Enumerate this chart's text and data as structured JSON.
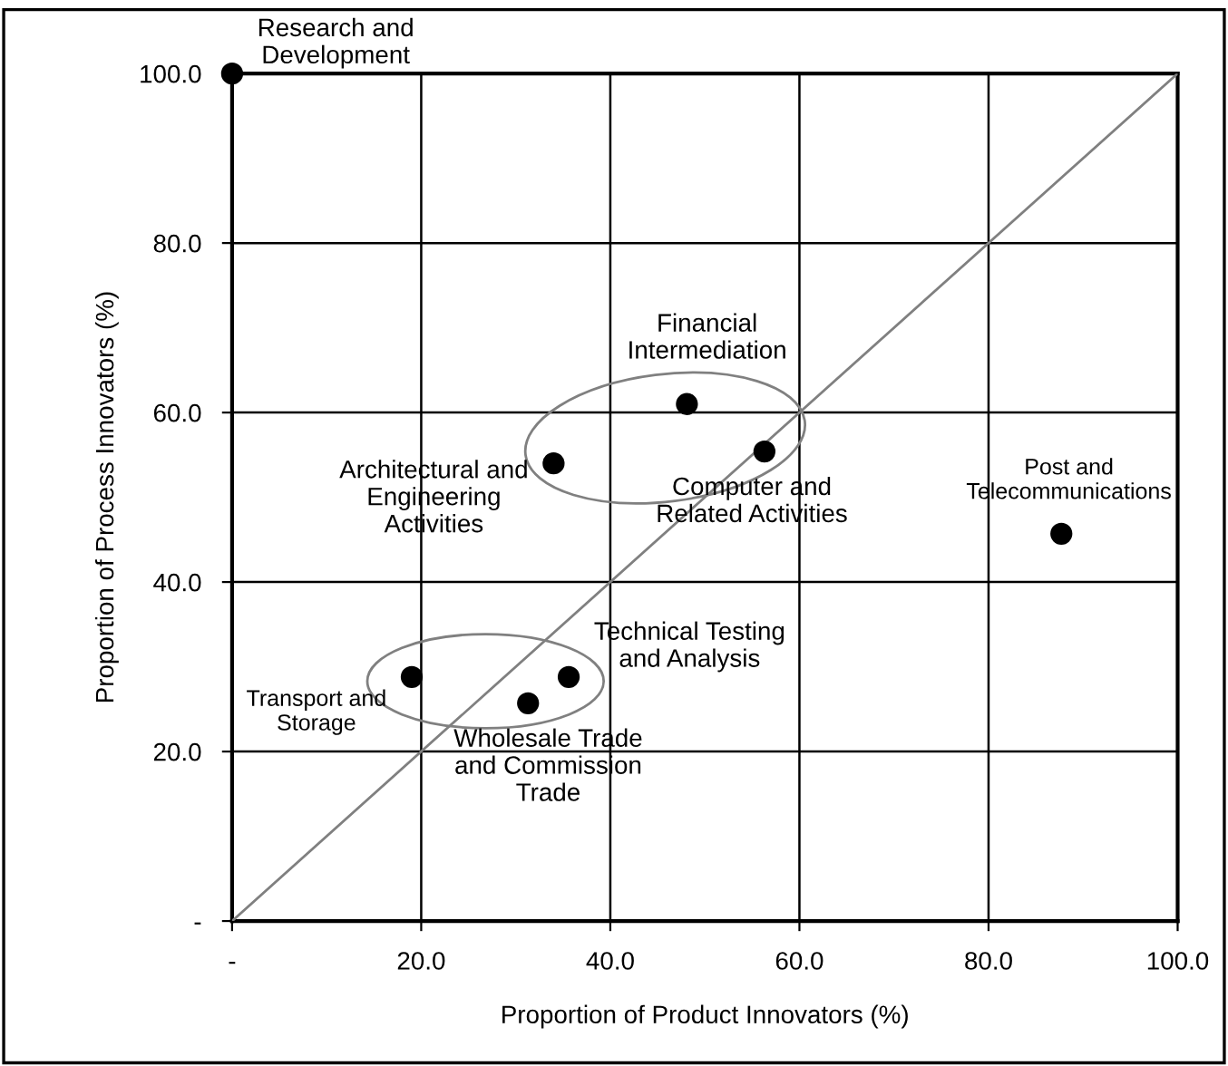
{
  "chart_data": {
    "type": "scatter",
    "xlabel": "Proportion of Product Innovators (%)",
    "ylabel": "Proportion of Process Innovators (%)",
    "xlim": [
      0,
      100
    ],
    "ylim": [
      0,
      100
    ],
    "xticks": [
      {
        "value": 0,
        "label": "-"
      },
      {
        "value": 20,
        "label": "20.0"
      },
      {
        "value": 40,
        "label": "40.0"
      },
      {
        "value": 60,
        "label": "60.0"
      },
      {
        "value": 80,
        "label": "80.0"
      },
      {
        "value": 100,
        "label": "100.0"
      }
    ],
    "yticks": [
      {
        "value": 0,
        "label": "-"
      },
      {
        "value": 20,
        "label": "20.0"
      },
      {
        "value": 40,
        "label": "40.0"
      },
      {
        "value": 60,
        "label": "60.0"
      },
      {
        "value": 80,
        "label": "80.0"
      },
      {
        "value": 100,
        "label": "100.0"
      }
    ],
    "grid": true,
    "marker": "circle",
    "legend": false,
    "series": [
      {
        "color": "#000000",
        "x": [
          0,
          48.1,
          34.0,
          56.3,
          87.7,
          19.0,
          31.3,
          35.6
        ],
        "values": [
          100,
          61.0,
          54.0,
          55.4,
          45.7,
          28.8,
          25.7,
          28.8
        ]
      },
      {
        "type": "line",
        "color": "#808080",
        "x": [
          0,
          100
        ],
        "values": [
          0,
          100
        ],
        "marker": "none",
        "line_style": "solid"
      }
    ],
    "annotations": [
      {
        "text": "Research and\nDevelopment",
        "x": 0,
        "y": 100
      },
      {
        "text": "Financial\nIntermediation",
        "x": 48.1,
        "y": 61.0
      },
      {
        "text": "Architectural and\nEngineering\nActivities",
        "x": 34.0,
        "y": 54.0
      },
      {
        "text": "Computer and\nRelated Activities",
        "x": 56.3,
        "y": 55.4
      },
      {
        "text": "Post and\nTelecommunications",
        "x": 87.7,
        "y": 45.7
      },
      {
        "text": "Transport and\nStorage",
        "x": 19.0,
        "y": 28.8
      },
      {
        "text": "Wholesale Trade\nand Commission\nTrade",
        "x": 31.3,
        "y": 25.7
      },
      {
        "text": "Technical Testing\nand Analysis",
        "x": 35.6,
        "y": 28.8
      }
    ]
  }
}
